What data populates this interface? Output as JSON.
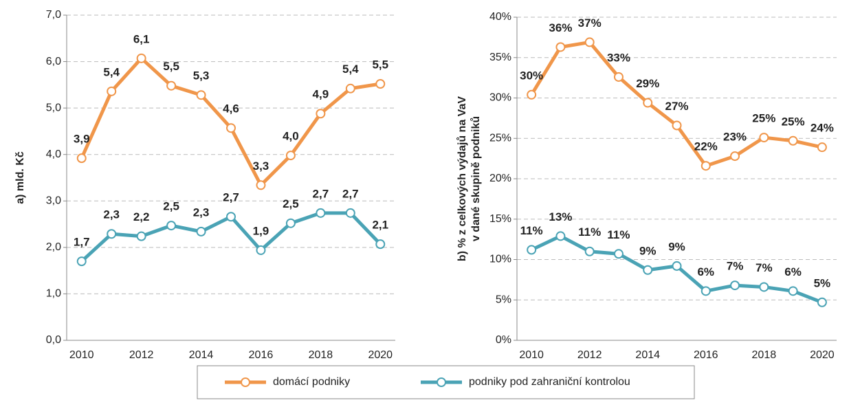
{
  "chart_data": [
    {
      "type": "line",
      "ylabel": [
        "a) mld. Kč"
      ],
      "categories": [
        "2010",
        null,
        "2012",
        null,
        "2014",
        null,
        "2016",
        null,
        "2018",
        null,
        "2020"
      ],
      "ylim": [
        0,
        7
      ],
      "yticks": [
        {
          "value": 0,
          "label": "0,0"
        },
        {
          "value": 1,
          "label": "1,0"
        },
        {
          "value": 2,
          "label": "2,0"
        },
        {
          "value": 3,
          "label": "3,0"
        },
        {
          "value": 4,
          "label": "4,0"
        },
        {
          "value": 5,
          "label": "5,0"
        },
        {
          "value": 6,
          "label": "6,0"
        },
        {
          "value": 7,
          "label": "7,0"
        }
      ],
      "grid": true,
      "series": [
        {
          "name": "domácí podniky",
          "color": "#f0964a",
          "values": [
            3.92,
            5.36,
            6.07,
            5.48,
            5.28,
            4.57,
            3.34,
            3.98,
            4.88,
            5.42,
            5.52
          ],
          "value_labels": [
            "3,9",
            "5,4",
            "6,1",
            "5,5",
            "5,3",
            "4,6",
            "3,3",
            "4,0",
            "4,9",
            "5,4",
            "5,5"
          ]
        },
        {
          "name": "podniky pod zahraniční kontrolou",
          "color": "#4aa3b5",
          "values": [
            1.7,
            2.29,
            2.24,
            2.47,
            2.34,
            2.66,
            1.94,
            2.52,
            2.74,
            2.74,
            2.07
          ],
          "value_labels": [
            "1,7",
            "2,3",
            "2,2",
            "2,5",
            "2,3",
            "2,7",
            "1,9",
            "2,5",
            "2,7",
            "2,7",
            "2,1"
          ]
        }
      ]
    },
    {
      "type": "line",
      "ylabel": [
        "b) % z celkových výdajů na VaV",
        "v dané skupině podniků"
      ],
      "categories": [
        "2010",
        null,
        "2012",
        null,
        "2014",
        null,
        "2016",
        null,
        "2018",
        null,
        "2020"
      ],
      "ylim": [
        0,
        40
      ],
      "yticks": [
        {
          "value": 0,
          "label": "0%"
        },
        {
          "value": 5,
          "label": "5%"
        },
        {
          "value": 10,
          "label": "10%"
        },
        {
          "value": 15,
          "label": "15%"
        },
        {
          "value": 20,
          "label": "20%"
        },
        {
          "value": 25,
          "label": "25%"
        },
        {
          "value": 30,
          "label": "30%"
        },
        {
          "value": 35,
          "label": "35%"
        },
        {
          "value": 40,
          "label": "40%"
        }
      ],
      "grid": true,
      "series": [
        {
          "color": "#f0964a",
          "values": [
            30.4,
            36.3,
            36.9,
            32.6,
            29.4,
            26.6,
            21.6,
            22.8,
            25.1,
            24.7,
            23.9
          ],
          "value_labels": [
            "30%",
            "36%",
            "37%",
            "33%",
            "29%",
            "27%",
            "22%",
            "23%",
            "25%",
            "25%",
            "24%"
          ]
        },
        {
          "color": "#4aa3b5",
          "values": [
            11.2,
            12.9,
            11.0,
            10.7,
            8.7,
            9.2,
            6.1,
            6.8,
            6.6,
            6.1,
            4.7
          ],
          "value_labels": [
            "11%",
            "13%",
            "11%",
            "11%",
            "9%",
            "9%",
            "6%",
            "7%",
            "7%",
            "6%",
            "5%"
          ]
        }
      ]
    }
  ]
}
